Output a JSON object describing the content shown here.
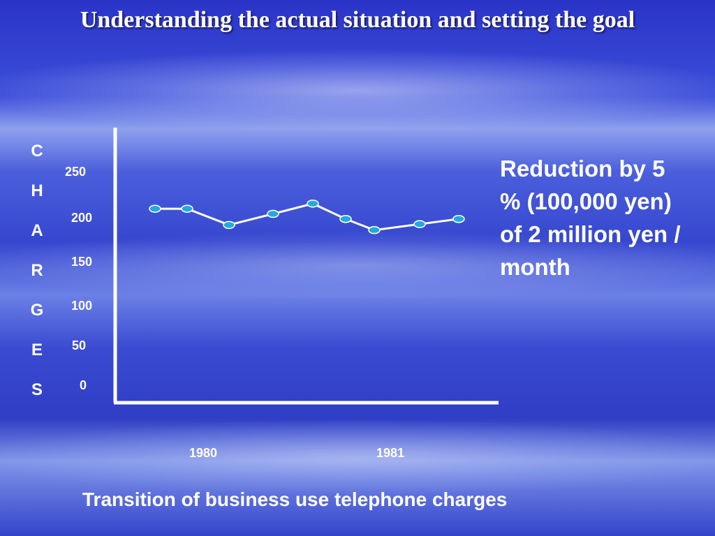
{
  "slide": {
    "title": "Understanding the actual situation and setting the goal",
    "note": "Reduction by 5 % (100,000 yen) of 2 million yen / month",
    "caption": "Transition of business use telephone charges"
  },
  "chart_data": {
    "type": "line",
    "ylabel": "CHARGES",
    "ylim": [
      0,
      250
    ],
    "yticks": [
      "250",
      "200",
      "150",
      "100",
      "50",
      "0"
    ],
    "xticks": [
      "1980",
      "1981"
    ],
    "grid": false,
    "colors": {
      "line": "#ffffff",
      "marker": "#22aadd"
    },
    "series": [
      {
        "values": [
          205,
          205,
          186,
          199,
          211,
          193,
          180,
          187,
          193
        ]
      }
    ]
  }
}
